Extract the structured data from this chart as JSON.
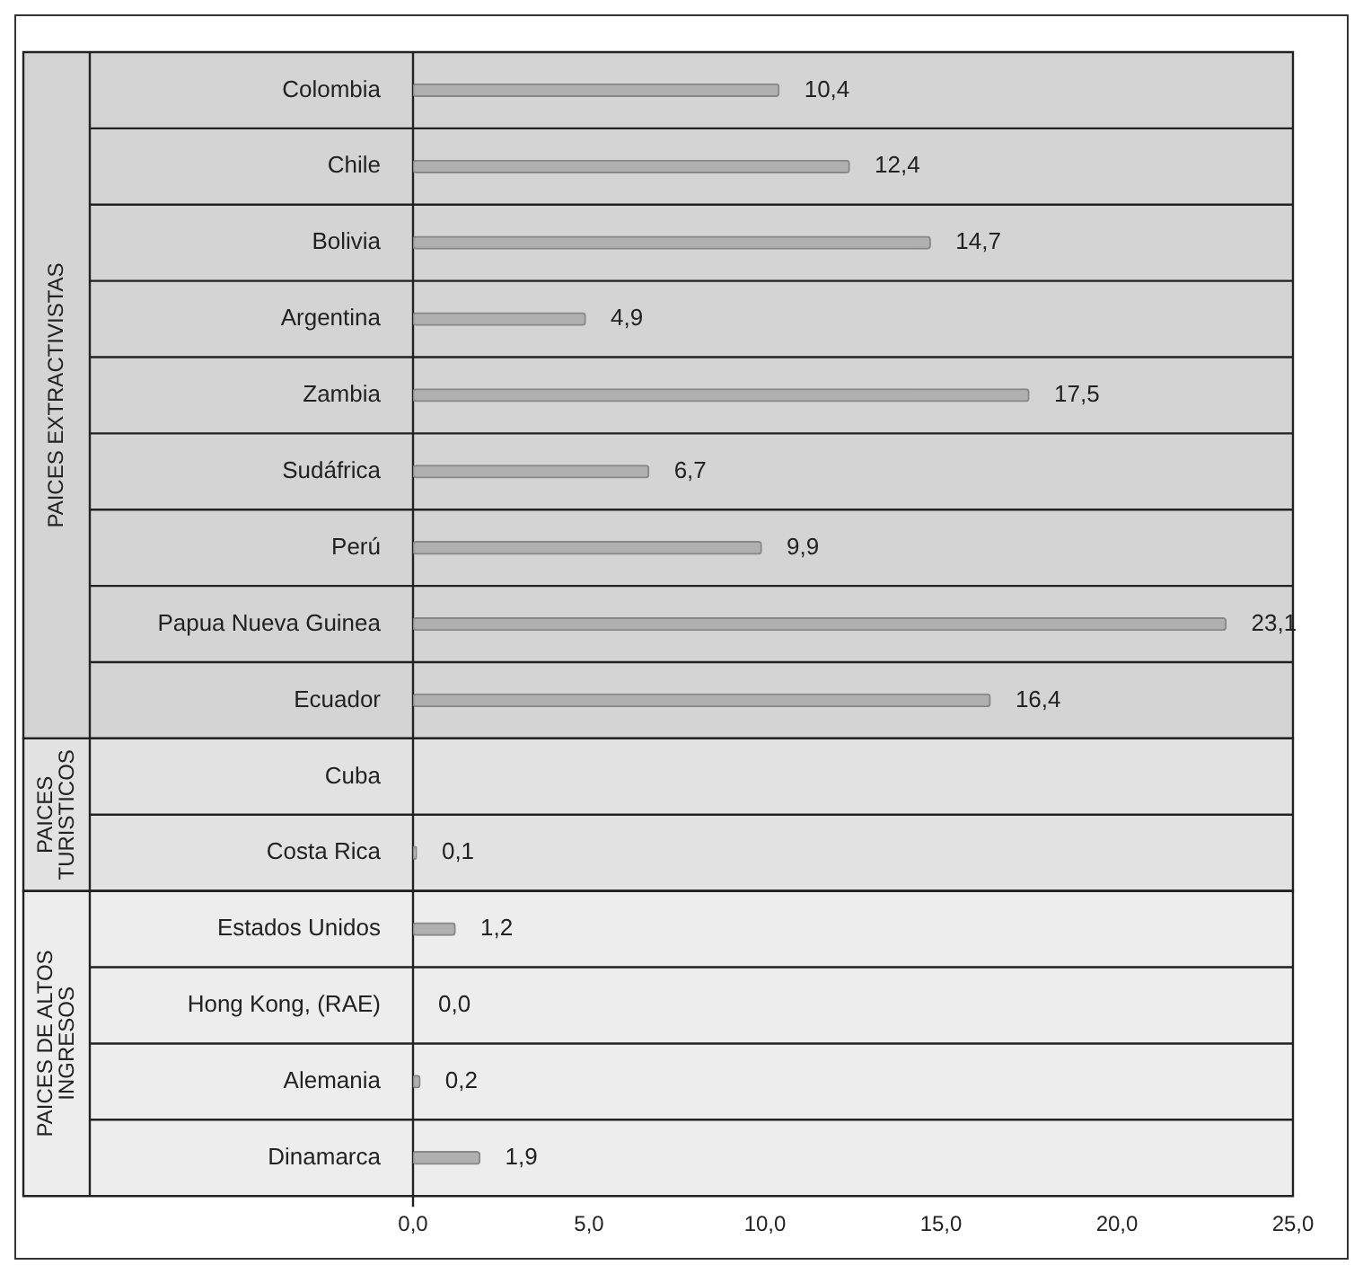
{
  "chart_data": {
    "type": "bar",
    "orientation": "horizontal",
    "categories": [
      "Colombia",
      "Chile",
      "Bolivia",
      "Argentina",
      "Zambia",
      "Sudáfrica",
      "Perú",
      "Papua Nueva Guinea",
      "Ecuador",
      "Cuba",
      "Costa Rica",
      "Estados Unidos",
      "Hong Kong, (RAE)",
      "Alemania",
      "Dinamarca"
    ],
    "values": [
      10.4,
      12.4,
      14.7,
      4.9,
      17.5,
      6.7,
      9.9,
      23.1,
      16.4,
      null,
      0.1,
      1.2,
      0.0,
      0.2,
      1.9
    ],
    "value_labels": [
      "10,4",
      "12,4",
      "14,7",
      "4,9",
      "17,5",
      "6,7",
      "9,9",
      "23,1",
      "16,4",
      null,
      "0,1",
      "1,2",
      "0,0",
      "0,2",
      "1,9"
    ],
    "color": "#b0b0b0",
    "xlim": [
      0,
      25
    ],
    "xticks": [
      {
        "value": 0,
        "label": "0,0"
      },
      {
        "value": 5,
        "label": "5,0"
      },
      {
        "value": 10,
        "label": "10,0"
      },
      {
        "value": 15,
        "label": "15,0"
      },
      {
        "value": 20,
        "label": "20,0"
      },
      {
        "value": 25,
        "label": "25,0"
      }
    ],
    "bands": [
      {
        "axis": "y",
        "from": "Colombia",
        "to": "Ecuador",
        "label": "PAICES EXTRACTIVISTAS",
        "color": "#d4d4d4"
      },
      {
        "axis": "y",
        "from": "Cuba",
        "to": "Costa Rica",
        "label": "PAICES TURISTICOS",
        "color": "#e2e2e2"
      },
      {
        "axis": "y",
        "from": "Estados Unidos",
        "to": "Dinamarca",
        "label": "PAICES DE ALTOS INGRESOS",
        "color": "#ededed"
      }
    ],
    "grid": "y",
    "legend": false
  }
}
